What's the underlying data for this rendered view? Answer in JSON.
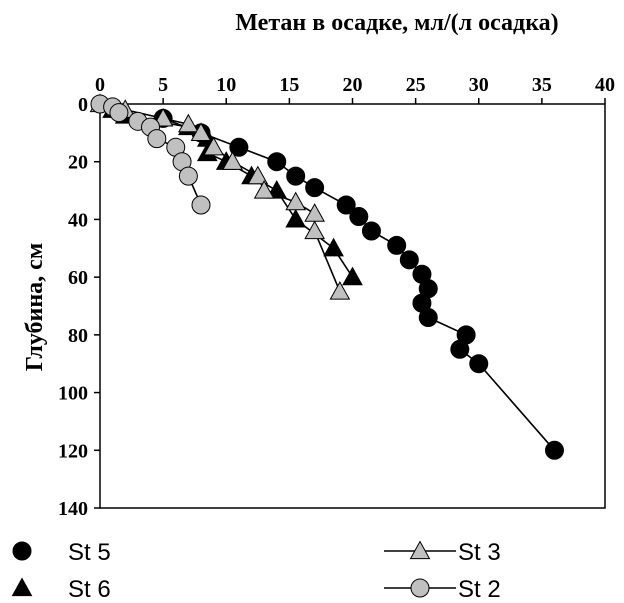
{
  "chart_data": {
    "type": "scatter",
    "xlabel": "Метан в осадке, мл/(л осадка)",
    "ylabel": "Глубина, см",
    "xlim": [
      0,
      40
    ],
    "ylim": [
      0,
      140
    ],
    "y_inverted": true,
    "x_axis_position": "top",
    "x_ticks": [
      "0",
      "5",
      "10",
      "15",
      "20",
      "25",
      "30",
      "35",
      "40"
    ],
    "y_ticks": [
      "0",
      "20",
      "40",
      "60",
      "80",
      "100",
      "120",
      "140"
    ],
    "grid": false,
    "legend_placement": "bottom",
    "series": [
      {
        "name": "St 5",
        "marker": "circle",
        "color": "#000000",
        "line": true,
        "line_color": "#000000",
        "points": [
          [
            5,
            5
          ],
          [
            8,
            10
          ],
          [
            11,
            15
          ],
          [
            14,
            20
          ],
          [
            15.5,
            25
          ],
          [
            17,
            29
          ],
          [
            19.5,
            35
          ],
          [
            20.5,
            39
          ],
          [
            21.5,
            44
          ],
          [
            23.5,
            49
          ],
          [
            24.5,
            54
          ],
          [
            25.5,
            59
          ],
          [
            26,
            64
          ],
          [
            25.5,
            69
          ],
          [
            26,
            74
          ],
          [
            29,
            80
          ],
          [
            28.5,
            85
          ],
          [
            30,
            90
          ],
          [
            36,
            120
          ]
        ]
      },
      {
        "name": "St 6",
        "marker": "triangle",
        "color": "#000000",
        "line": true,
        "line_color": "#000000",
        "points": [
          [
            1,
            2
          ],
          [
            2,
            4
          ],
          [
            7,
            8
          ],
          [
            8.5,
            12
          ],
          [
            8.5,
            17
          ],
          [
            10,
            20
          ],
          [
            12,
            25
          ],
          [
            14,
            30
          ],
          [
            15.5,
            40
          ],
          [
            18.5,
            50
          ],
          [
            20,
            60
          ]
        ]
      },
      {
        "name": "St 3",
        "marker": "triangle",
        "color": "#c0c0c0",
        "line": true,
        "line_color": "#000000",
        "points": [
          [
            0,
            0
          ],
          [
            2,
            2
          ],
          [
            5,
            5
          ],
          [
            7,
            7
          ],
          [
            8,
            10
          ],
          [
            9,
            15
          ],
          [
            10.5,
            20
          ],
          [
            12.5,
            25
          ],
          [
            13,
            30
          ],
          [
            15.5,
            34
          ],
          [
            17,
            38
          ],
          [
            17,
            44
          ],
          [
            19,
            65
          ]
        ]
      },
      {
        "name": "St 2",
        "marker": "circle",
        "color": "#c0c0c0",
        "line": true,
        "line_color": "#000000",
        "points": [
          [
            0,
            0
          ],
          [
            1,
            1
          ],
          [
            1.5,
            3
          ],
          [
            3,
            6
          ],
          [
            4,
            8
          ],
          [
            4.5,
            12
          ],
          [
            6,
            15
          ],
          [
            6.5,
            20
          ],
          [
            7,
            25
          ],
          [
            8,
            35
          ]
        ]
      }
    ]
  }
}
